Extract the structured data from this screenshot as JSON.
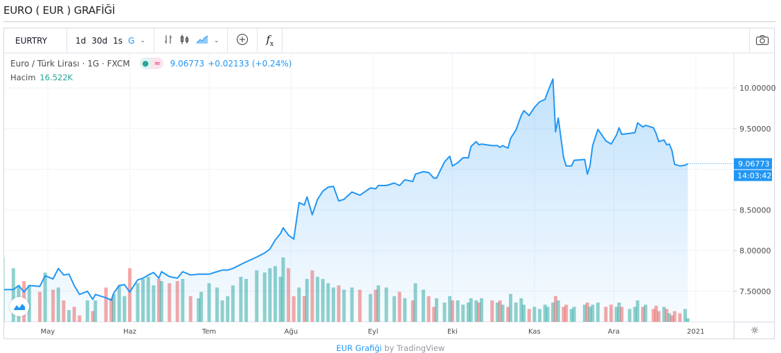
{
  "page": {
    "title": "EURO ( EUR ) GRAFİĞİ"
  },
  "toolbar": {
    "symbol": "EURTRY",
    "intervals": [
      "1d",
      "30d",
      "1s",
      "G"
    ],
    "active_interval": "G",
    "icons": [
      "chevron-down-icon",
      "bars-icon",
      "candles-icon",
      "area-chart-icon",
      "chevron-down-icon",
      "compare-plus-icon",
      "indicators-fx-icon",
      "camera-icon"
    ]
  },
  "legend": {
    "name": "Euro / Türk Lirası · 1G · FXCM",
    "price": "9.06773",
    "change": "+0.02133",
    "change_pct": "(+0.24%)",
    "volume_label": "Hacim",
    "volume_value": "16.522K"
  },
  "axis": {
    "last_price_label": "9.06773",
    "countdown": "14:03:42",
    "settings_icon": "gear-icon"
  },
  "footer": {
    "link": "EUR Grafiği",
    "by": "by TradingView"
  },
  "colors": {
    "line": "#2196f3",
    "up": "#26a69a",
    "down": "#ef5350",
    "grid": "#f0f3fa"
  },
  "chart_data": {
    "type": "area",
    "title": "",
    "xlabel": "",
    "ylabel": "",
    "ylim": [
      7.2,
      10.35
    ],
    "y_ticks": [
      "7.50000",
      "8.00000",
      "8.50000",
      "9.50000",
      "10.00000"
    ],
    "y_tick_values": [
      7.5,
      8.0,
      8.5,
      9.5,
      10.0
    ],
    "x_ticks": [
      {
        "label": "May",
        "date": "2020-05-01"
      },
      {
        "label": "Haz",
        "date": "2020-06-01"
      },
      {
        "label": "Tem",
        "date": "2020-07-01"
      },
      {
        "label": "Ağu",
        "date": "2020-08-01"
      },
      {
        "label": "Eyl",
        "date": "2020-09-01"
      },
      {
        "label": "Eki",
        "date": "2020-10-01"
      },
      {
        "label": "Kas",
        "date": "2020-11-01"
      },
      {
        "label": "Ara",
        "date": "2020-12-01"
      },
      {
        "label": "2021",
        "date": "2021-01-01"
      }
    ],
    "grid": true,
    "last_value": 9.06773,
    "series": [
      {
        "type": "area",
        "columns": [
          "date",
          "close",
          "volume_k"
        ],
        "points": [
          [
            "2020-04-14",
            7.52,
            300
          ],
          [
            "2020-04-18",
            7.52,
            250
          ],
          [
            "2020-04-20",
            7.57,
            170
          ],
          [
            "2020-04-22",
            7.49,
            190
          ],
          [
            "2020-04-24",
            7.57,
            170
          ],
          [
            "2020-04-28",
            7.56,
            140
          ],
          [
            "2020-04-30",
            7.69,
            230
          ],
          [
            "2020-05-03",
            7.65,
            150
          ],
          [
            "2020-05-05",
            7.78,
            160
          ],
          [
            "2020-05-07",
            7.7,
            100
          ],
          [
            "2020-05-09",
            7.71,
            55
          ],
          [
            "2020-05-11",
            7.57,
            70
          ],
          [
            "2020-05-13",
            7.46,
            30
          ],
          [
            "2020-05-16",
            7.5,
            100
          ],
          [
            "2020-05-18",
            7.4,
            50
          ],
          [
            "2020-05-19",
            7.46,
            100
          ],
          [
            "2020-05-23",
            7.42,
            160
          ],
          [
            "2020-05-25",
            7.39,
            110
          ],
          [
            "2020-05-26",
            7.48,
            130
          ],
          [
            "2020-05-28",
            7.57,
            170
          ],
          [
            "2020-05-30",
            7.58,
            120
          ],
          [
            "2020-06-01",
            7.49,
            250
          ],
          [
            "2020-06-04",
            7.64,
            180
          ],
          [
            "2020-06-06",
            7.66,
            200
          ],
          [
            "2020-06-08",
            7.7,
            210
          ],
          [
            "2020-06-10",
            7.73,
            170
          ],
          [
            "2020-06-12",
            7.66,
            200
          ],
          [
            "2020-06-13",
            7.74,
            190
          ],
          [
            "2020-06-16",
            7.68,
            180
          ],
          [
            "2020-06-19",
            7.66,
            190
          ],
          [
            "2020-06-21",
            7.74,
            200
          ],
          [
            "2020-06-24",
            7.7,
            120
          ],
          [
            "2020-06-27",
            7.71,
            110
          ],
          [
            "2020-06-28",
            7.71,
            140
          ],
          [
            "2020-07-01",
            7.71,
            180
          ],
          [
            "2020-07-04",
            7.74,
            160
          ],
          [
            "2020-07-06",
            7.76,
            100
          ],
          [
            "2020-07-08",
            7.76,
            120
          ],
          [
            "2020-07-10",
            7.78,
            170
          ],
          [
            "2020-07-13",
            7.83,
            210
          ],
          [
            "2020-07-15",
            7.86,
            200
          ],
          [
            "2020-07-19",
            7.92,
            240
          ],
          [
            "2020-07-22",
            7.97,
            230
          ],
          [
            "2020-07-24",
            8.02,
            250
          ],
          [
            "2020-07-26",
            8.13,
            260
          ],
          [
            "2020-07-28",
            8.21,
            210
          ],
          [
            "2020-07-29",
            8.28,
            300
          ],
          [
            "2020-07-31",
            8.19,
            250
          ],
          [
            "2020-08-02",
            8.14,
            120
          ],
          [
            "2020-08-04",
            8.59,
            160
          ],
          [
            "2020-08-06",
            8.56,
            120
          ],
          [
            "2020-08-07",
            8.66,
            200
          ],
          [
            "2020-08-09",
            8.44,
            240
          ],
          [
            "2020-08-11",
            8.63,
            210
          ],
          [
            "2020-08-13",
            8.73,
            200
          ],
          [
            "2020-08-15",
            8.78,
            180
          ],
          [
            "2020-08-17",
            8.79,
            160
          ],
          [
            "2020-08-19",
            8.61,
            170
          ],
          [
            "2020-08-21",
            8.63,
            150
          ],
          [
            "2020-08-24",
            8.72,
            160
          ],
          [
            "2020-08-27",
            8.68,
            150
          ],
          [
            "2020-08-31",
            8.77,
            130
          ],
          [
            "2020-09-02",
            8.76,
            150
          ],
          [
            "2020-09-03",
            8.8,
            170
          ],
          [
            "2020-09-06",
            8.8,
            160
          ],
          [
            "2020-09-09",
            8.83,
            120
          ],
          [
            "2020-09-11",
            8.8,
            140
          ],
          [
            "2020-09-13",
            8.87,
            110
          ],
          [
            "2020-09-16",
            8.85,
            100
          ],
          [
            "2020-09-17",
            8.94,
            180
          ],
          [
            "2020-09-20",
            8.97,
            150
          ],
          [
            "2020-09-22",
            8.96,
            120
          ],
          [
            "2020-09-24",
            8.89,
            70
          ],
          [
            "2020-09-25",
            8.89,
            110
          ],
          [
            "2020-09-28",
            9.09,
            90
          ],
          [
            "2020-09-30",
            9.16,
            120
          ],
          [
            "2020-10-01",
            9.04,
            100
          ],
          [
            "2020-10-03",
            9.08,
            100
          ],
          [
            "2020-10-05",
            9.14,
            80
          ],
          [
            "2020-10-07",
            9.14,
            90
          ],
          [
            "2020-10-08",
            9.28,
            110
          ],
          [
            "2020-10-10",
            9.34,
            100
          ],
          [
            "2020-10-11",
            9.3,
            90
          ],
          [
            "2020-10-12",
            9.31,
            110
          ],
          [
            "2020-10-16",
            9.29,
            100
          ],
          [
            "2020-10-18",
            9.29,
            90
          ],
          [
            "2020-10-19",
            9.27,
            100
          ],
          [
            "2020-10-20",
            9.29,
            80
          ],
          [
            "2020-10-22",
            9.26,
            70
          ],
          [
            "2020-10-23",
            9.38,
            130
          ],
          [
            "2020-10-25",
            9.48,
            90
          ],
          [
            "2020-10-27",
            9.66,
            110
          ],
          [
            "2020-10-28",
            9.72,
            80
          ],
          [
            "2020-10-30",
            9.66,
            60
          ],
          [
            "2020-11-01",
            9.76,
            70
          ],
          [
            "2020-11-03",
            9.83,
            60
          ],
          [
            "2020-11-05",
            9.86,
            80
          ],
          [
            "2020-11-06",
            9.95,
            70
          ],
          [
            "2020-11-08",
            10.11,
            90
          ],
          [
            "2020-11-09",
            9.46,
            120
          ],
          [
            "2020-11-10",
            9.63,
            100
          ],
          [
            "2020-11-12",
            9.15,
            70
          ],
          [
            "2020-11-13",
            9.04,
            80
          ],
          [
            "2020-11-15",
            9.04,
            60
          ],
          [
            "2020-11-16",
            9.11,
            70
          ],
          [
            "2020-11-20",
            9.12,
            80
          ],
          [
            "2020-11-21",
            8.94,
            90
          ],
          [
            "2020-11-22",
            9.04,
            70
          ],
          [
            "2020-11-23",
            9.29,
            80
          ],
          [
            "2020-11-25",
            9.49,
            90
          ],
          [
            "2020-11-28",
            9.35,
            70
          ],
          [
            "2020-11-30",
            9.31,
            80
          ],
          [
            "2020-12-02",
            9.42,
            70
          ],
          [
            "2020-12-03",
            9.51,
            90
          ],
          [
            "2020-12-04",
            9.43,
            70
          ],
          [
            "2020-12-07",
            9.44,
            60
          ],
          [
            "2020-12-09",
            9.45,
            70
          ],
          [
            "2020-12-10",
            9.57,
            100
          ],
          [
            "2020-12-12",
            9.52,
            70
          ],
          [
            "2020-12-13",
            9.54,
            80
          ],
          [
            "2020-12-16",
            9.51,
            60
          ],
          [
            "2020-12-17",
            9.44,
            75
          ],
          [
            "2020-12-18",
            9.34,
            50
          ],
          [
            "2020-12-20",
            9.36,
            70
          ],
          [
            "2020-12-21",
            9.3,
            60
          ],
          [
            "2020-12-22",
            9.31,
            40
          ],
          [
            "2020-12-23",
            9.23,
            30
          ],
          [
            "2020-12-24",
            9.06,
            50
          ],
          [
            "2020-12-26",
            9.04,
            40
          ],
          [
            "2020-12-28",
            9.05,
            60
          ],
          [
            "2020-12-29",
            9.06773,
            16.522
          ]
        ]
      }
    ]
  }
}
